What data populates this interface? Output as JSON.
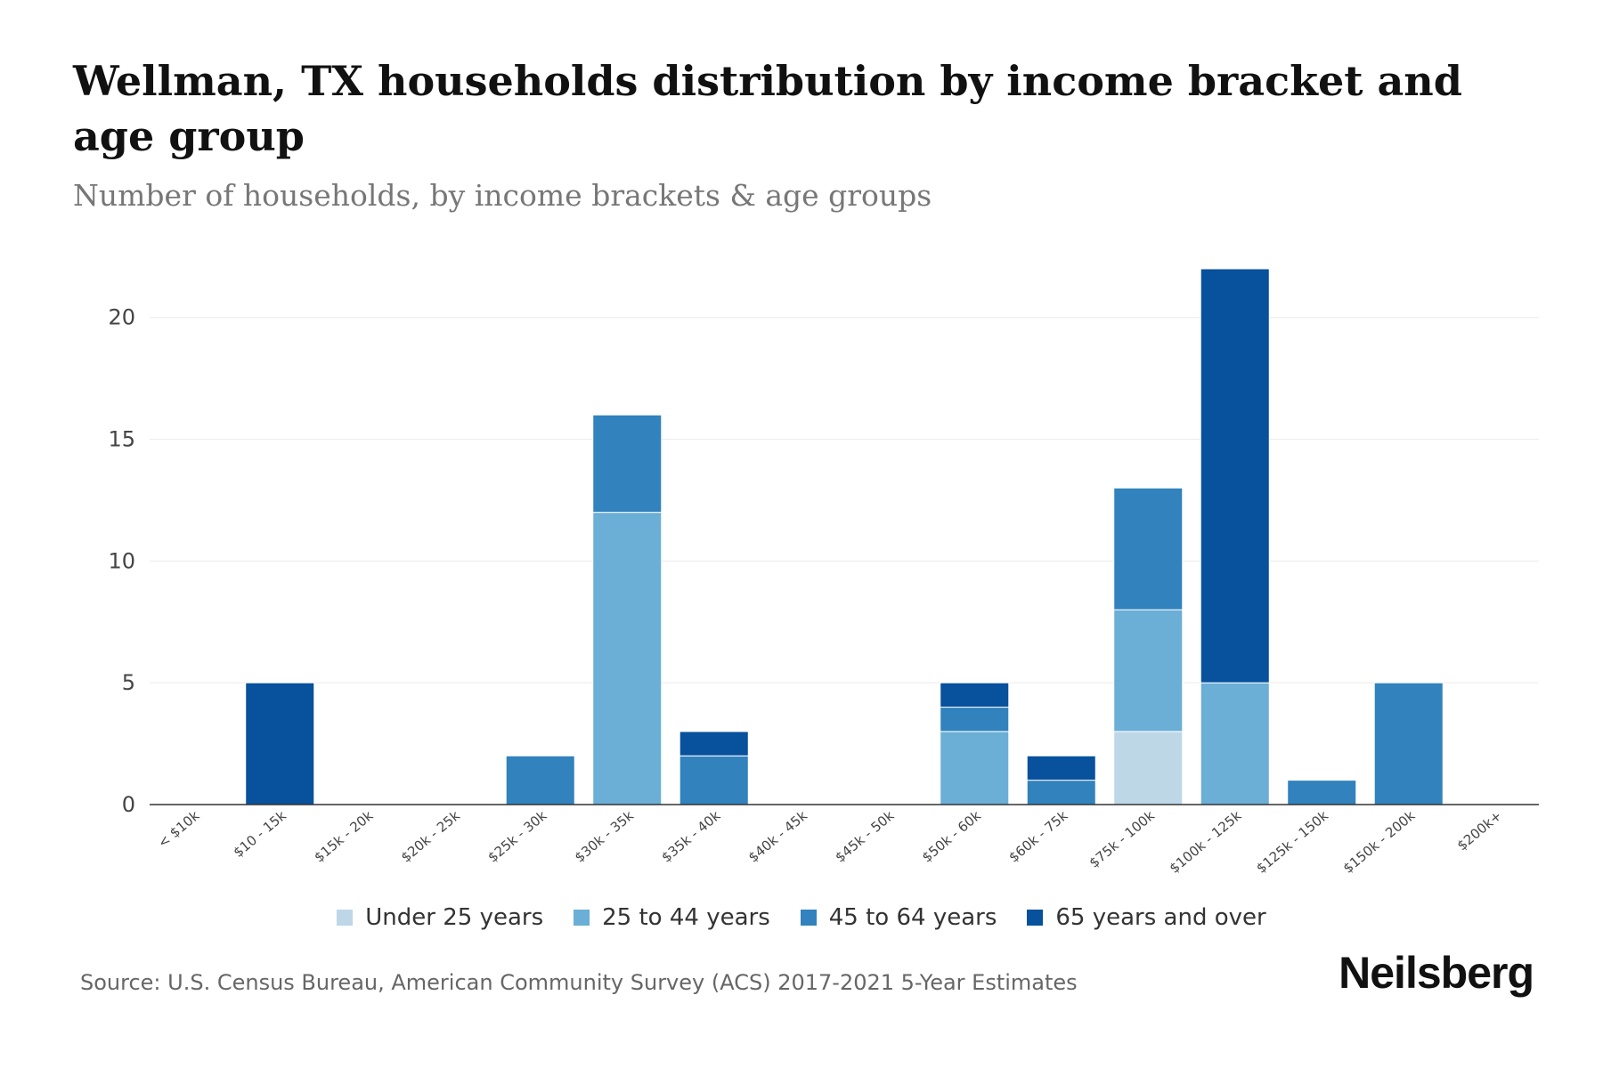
{
  "header": {
    "title": "Wellman, TX households distribution by income bracket and age group",
    "subtitle": "Number of households, by income brackets & age groups"
  },
  "footer": {
    "source": "Source: U.S. Census Bureau, American Community Survey (ACS) 2017-2021 5-Year Estimates",
    "brand": "Neilsberg"
  },
  "chart_data": {
    "type": "bar",
    "stacked": true,
    "title": "Wellman, TX households distribution by income bracket and age group",
    "subtitle": "Number of households, by income brackets & age groups",
    "xlabel": "",
    "ylabel": "",
    "ylim": [
      0,
      22
    ],
    "yticks": [
      0,
      5,
      10,
      15,
      20
    ],
    "grid": true,
    "legend_position": "bottom-center",
    "categories": [
      "< $10k",
      "$10 - 15k",
      "$15k - 20k",
      "$20k - 25k",
      "$25k - 30k",
      "$30k - 35k",
      "$35k - 40k",
      "$40k - 45k",
      "$45k - 50k",
      "$50k - 60k",
      "$60k - 75k",
      "$75k - 100k",
      "$100k - 125k",
      "$125k - 150k",
      "$150k - 200k",
      "$200k+"
    ],
    "series": [
      {
        "name": "Under 25 years",
        "color": "#bdd7e7",
        "values": [
          0,
          0,
          0,
          0,
          0,
          0,
          0,
          0,
          0,
          0,
          0,
          3,
          0,
          0,
          0,
          0
        ]
      },
      {
        "name": "25 to 44 years",
        "color": "#6baed6",
        "values": [
          0,
          0,
          0,
          0,
          0,
          12,
          0,
          0,
          0,
          3,
          0,
          5,
          5,
          0,
          0,
          0
        ]
      },
      {
        "name": "45 to 64 years",
        "color": "#3182bd",
        "values": [
          0,
          0,
          0,
          0,
          2,
          4,
          2,
          0,
          0,
          1,
          1,
          5,
          0,
          1,
          5,
          0
        ]
      },
      {
        "name": "65 years and over",
        "color": "#08519c",
        "values": [
          0,
          5,
          0,
          0,
          0,
          0,
          1,
          0,
          0,
          1,
          1,
          0,
          17,
          0,
          0,
          0
        ]
      }
    ]
  }
}
